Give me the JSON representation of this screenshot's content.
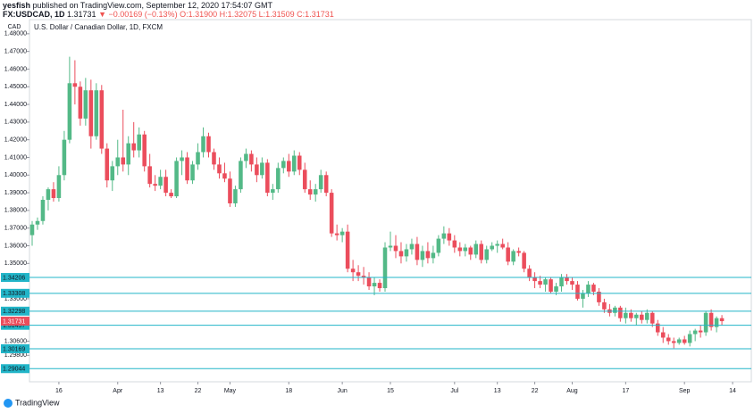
{
  "header": {
    "author": "yesfish",
    "published": "published on TradingView.com, September 12, 2020 17:54:07 GMT",
    "symbol": "FX:USDCAD, 1D",
    "last": "1.31731",
    "change": "▼ −0.00169 (−0.13%)",
    "ohlc": "O:1.31900 H:1.32075 L:1.31509 C:1.31731"
  },
  "footer": {
    "brand": "TradingView"
  },
  "chart_data": {
    "type": "candlestick",
    "title": "U.S. Dollar / Canadian Dollar, 1D, FXCM",
    "axis_label": "CAD",
    "up_color": "#53b987",
    "down_color": "#eb4d5c",
    "level_color": "#22b5c8",
    "ylim": [
      1.283,
      1.488
    ],
    "xlim": [
      -0.5,
      134.5
    ],
    "yticks": [
      {
        "value": 1.48,
        "label": "1.48000"
      },
      {
        "value": 1.47,
        "label": "1.47000"
      },
      {
        "value": 1.46,
        "label": "1.46000"
      },
      {
        "value": 1.45,
        "label": "1.45000"
      },
      {
        "value": 1.44,
        "label": "1.44000"
      },
      {
        "value": 1.43,
        "label": "1.43000"
      },
      {
        "value": 1.42,
        "label": "1.42000"
      },
      {
        "value": 1.41,
        "label": "1.41000"
      },
      {
        "value": 1.4,
        "label": "1.40000"
      },
      {
        "value": 1.39,
        "label": "1.39000"
      },
      {
        "value": 1.38,
        "label": "1.38000"
      },
      {
        "value": 1.37,
        "label": "1.37000"
      },
      {
        "value": 1.36,
        "label": "1.36000"
      },
      {
        "value": 1.35,
        "label": "1.35000"
      },
      {
        "value": 1.33,
        "label": "1.33000"
      },
      {
        "value": 1.306,
        "label": "1.30600"
      },
      {
        "value": 1.298,
        "label": "1.29800"
      }
    ],
    "xticks": [
      {
        "value": 5,
        "label": "16"
      },
      {
        "value": 16,
        "label": "Apr"
      },
      {
        "value": 24,
        "label": "13"
      },
      {
        "value": 31,
        "label": "22"
      },
      {
        "value": 37,
        "label": "May"
      },
      {
        "value": 48,
        "label": "18"
      },
      {
        "value": 58,
        "label": "Jun"
      },
      {
        "value": 67,
        "label": "15"
      },
      {
        "value": 79,
        "label": "Jul"
      },
      {
        "value": 87,
        "label": "13"
      },
      {
        "value": 94,
        "label": "22"
      },
      {
        "value": 101,
        "label": "Aug"
      },
      {
        "value": 111,
        "label": "17"
      },
      {
        "value": 122,
        "label": "Sep"
      },
      {
        "value": 131,
        "label": "14"
      }
    ],
    "levels": [
      1.34206,
      1.33308,
      1.32298,
      1.31497,
      1.30169,
      1.29044
    ],
    "last_price": 1.31731,
    "candles": [
      [
        1.366,
        1.374,
        1.36,
        1.372
      ],
      [
        1.372,
        1.376,
        1.369,
        1.374
      ],
      [
        1.374,
        1.388,
        1.372,
        1.386
      ],
      [
        1.386,
        1.393,
        1.38,
        1.392
      ],
      [
        1.392,
        1.396,
        1.385,
        1.387
      ],
      [
        1.387,
        1.405,
        1.385,
        1.4
      ],
      [
        1.4,
        1.425,
        1.397,
        1.42
      ],
      [
        1.42,
        1.467,
        1.418,
        1.452
      ],
      [
        1.452,
        1.465,
        1.44,
        1.45
      ],
      [
        1.45,
        1.453,
        1.428,
        1.432
      ],
      [
        1.432,
        1.455,
        1.428,
        1.448
      ],
      [
        1.448,
        1.454,
        1.415,
        1.422
      ],
      [
        1.422,
        1.452,
        1.42,
        1.448
      ],
      [
        1.448,
        1.451,
        1.412,
        1.415
      ],
      [
        1.415,
        1.418,
        1.393,
        1.397
      ],
      [
        1.397,
        1.408,
        1.391,
        1.405
      ],
      [
        1.405,
        1.42,
        1.4,
        1.41
      ],
      [
        1.41,
        1.437,
        1.402,
        1.406
      ],
      [
        1.406,
        1.422,
        1.4,
        1.418
      ],
      [
        1.418,
        1.43,
        1.41,
        1.414
      ],
      [
        1.414,
        1.427,
        1.41,
        1.423
      ],
      [
        1.423,
        1.425,
        1.402,
        1.405
      ],
      [
        1.405,
        1.412,
        1.393,
        1.395
      ],
      [
        1.395,
        1.4,
        1.391,
        1.394
      ],
      [
        1.394,
        1.403,
        1.392,
        1.399
      ],
      [
        1.399,
        1.403,
        1.388,
        1.39
      ],
      [
        1.39,
        1.392,
        1.387,
        1.388
      ],
      [
        1.388,
        1.41,
        1.387,
        1.408
      ],
      [
        1.408,
        1.414,
        1.4,
        1.41
      ],
      [
        1.41,
        1.413,
        1.395,
        1.397
      ],
      [
        1.397,
        1.408,
        1.395,
        1.406
      ],
      [
        1.406,
        1.418,
        1.403,
        1.413
      ],
      [
        1.413,
        1.427,
        1.41,
        1.422
      ],
      [
        1.422,
        1.424,
        1.41,
        1.413
      ],
      [
        1.413,
        1.415,
        1.403,
        1.406
      ],
      [
        1.406,
        1.41,
        1.398,
        1.401
      ],
      [
        1.401,
        1.407,
        1.396,
        1.398
      ],
      [
        1.398,
        1.402,
        1.382,
        1.384
      ],
      [
        1.384,
        1.394,
        1.382,
        1.392
      ],
      [
        1.392,
        1.41,
        1.39,
        1.408
      ],
      [
        1.408,
        1.415,
        1.404,
        1.412
      ],
      [
        1.412,
        1.414,
        1.402,
        1.406
      ],
      [
        1.406,
        1.41,
        1.396,
        1.4
      ],
      [
        1.4,
        1.41,
        1.398,
        1.407
      ],
      [
        1.407,
        1.409,
        1.388,
        1.39
      ],
      [
        1.39,
        1.395,
        1.386,
        1.392
      ],
      [
        1.392,
        1.407,
        1.39,
        1.404
      ],
      [
        1.404,
        1.41,
        1.401,
        1.408
      ],
      [
        1.408,
        1.412,
        1.399,
        1.402
      ],
      [
        1.402,
        1.414,
        1.4,
        1.411
      ],
      [
        1.411,
        1.413,
        1.4,
        1.403
      ],
      [
        1.403,
        1.407,
        1.39,
        1.392
      ],
      [
        1.392,
        1.397,
        1.386,
        1.389
      ],
      [
        1.389,
        1.395,
        1.385,
        1.392
      ],
      [
        1.392,
        1.403,
        1.39,
        1.4
      ],
      [
        1.4,
        1.402,
        1.388,
        1.39
      ],
      [
        1.39,
        1.392,
        1.365,
        1.367
      ],
      [
        1.367,
        1.372,
        1.363,
        1.366
      ],
      [
        1.366,
        1.37,
        1.362,
        1.368
      ],
      [
        1.368,
        1.372,
        1.345,
        1.347
      ],
      [
        1.347,
        1.352,
        1.34,
        1.345
      ],
      [
        1.345,
        1.349,
        1.34,
        1.343
      ],
      [
        1.343,
        1.348,
        1.338,
        1.342
      ],
      [
        1.342,
        1.345,
        1.335,
        1.337
      ],
      [
        1.337,
        1.342,
        1.332,
        1.339
      ],
      [
        1.339,
        1.341,
        1.334,
        1.336
      ],
      [
        1.336,
        1.362,
        1.334,
        1.359
      ],
      [
        1.359,
        1.368,
        1.357,
        1.36
      ],
      [
        1.36,
        1.366,
        1.353,
        1.357
      ],
      [
        1.357,
        1.362,
        1.35,
        1.354
      ],
      [
        1.354,
        1.361,
        1.351,
        1.358
      ],
      [
        1.358,
        1.364,
        1.355,
        1.361
      ],
      [
        1.361,
        1.365,
        1.349,
        1.352
      ],
      [
        1.352,
        1.36,
        1.348,
        1.357
      ],
      [
        1.357,
        1.362,
        1.35,
        1.353
      ],
      [
        1.353,
        1.36,
        1.35,
        1.356
      ],
      [
        1.356,
        1.366,
        1.354,
        1.364
      ],
      [
        1.364,
        1.371,
        1.361,
        1.367
      ],
      [
        1.367,
        1.37,
        1.36,
        1.363
      ],
      [
        1.363,
        1.366,
        1.356,
        1.359
      ],
      [
        1.359,
        1.362,
        1.354,
        1.357
      ],
      [
        1.357,
        1.361,
        1.354,
        1.359
      ],
      [
        1.359,
        1.36,
        1.352,
        1.355
      ],
      [
        1.355,
        1.363,
        1.353,
        1.361
      ],
      [
        1.361,
        1.363,
        1.35,
        1.352
      ],
      [
        1.352,
        1.36,
        1.35,
        1.358
      ],
      [
        1.358,
        1.362,
        1.357,
        1.36
      ],
      [
        1.36,
        1.363,
        1.356,
        1.361
      ],
      [
        1.361,
        1.364,
        1.358,
        1.359
      ],
      [
        1.359,
        1.362,
        1.349,
        1.351
      ],
      [
        1.351,
        1.358,
        1.349,
        1.357
      ],
      [
        1.357,
        1.359,
        1.354,
        1.356
      ],
      [
        1.356,
        1.357,
        1.345,
        1.347
      ],
      [
        1.347,
        1.349,
        1.34,
        1.342
      ],
      [
        1.342,
        1.345,
        1.336,
        1.34
      ],
      [
        1.34,
        1.343,
        1.336,
        1.338
      ],
      [
        1.338,
        1.342,
        1.334,
        1.341
      ],
      [
        1.341,
        1.342,
        1.333,
        1.334
      ],
      [
        1.334,
        1.339,
        1.332,
        1.337
      ],
      [
        1.337,
        1.344,
        1.334,
        1.342
      ],
      [
        1.342,
        1.344,
        1.338,
        1.34
      ],
      [
        1.34,
        1.342,
        1.335,
        1.338
      ],
      [
        1.338,
        1.34,
        1.329,
        1.33
      ],
      [
        1.33,
        1.335,
        1.325,
        1.333
      ],
      [
        1.333,
        1.34,
        1.331,
        1.338
      ],
      [
        1.338,
        1.339,
        1.332,
        1.334
      ],
      [
        1.334,
        1.336,
        1.326,
        1.328
      ],
      [
        1.328,
        1.33,
        1.322,
        1.324
      ],
      [
        1.324,
        1.327,
        1.32,
        1.322
      ],
      [
        1.322,
        1.326,
        1.32,
        1.325
      ],
      [
        1.325,
        1.326,
        1.317,
        1.319
      ],
      [
        1.319,
        1.325,
        1.316,
        1.322
      ],
      [
        1.322,
        1.324,
        1.317,
        1.319
      ],
      [
        1.319,
        1.322,
        1.315,
        1.321
      ],
      [
        1.321,
        1.323,
        1.316,
        1.318
      ],
      [
        1.318,
        1.324,
        1.316,
        1.322
      ],
      [
        1.322,
        1.323,
        1.314,
        1.316
      ],
      [
        1.316,
        1.318,
        1.309,
        1.311
      ],
      [
        1.311,
        1.314,
        1.305,
        1.308
      ],
      [
        1.308,
        1.31,
        1.304,
        1.306
      ],
      [
        1.306,
        1.308,
        1.302,
        1.305
      ],
      [
        1.305,
        1.308,
        1.304,
        1.307
      ],
      [
        1.307,
        1.309,
        1.304,
        1.305
      ],
      [
        1.305,
        1.312,
        1.303,
        1.31
      ],
      [
        1.31,
        1.313,
        1.306,
        1.312
      ],
      [
        1.312,
        1.315,
        1.308,
        1.311
      ],
      [
        1.311,
        1.323,
        1.309,
        1.322
      ],
      [
        1.322,
        1.324,
        1.312,
        1.314
      ],
      [
        1.314,
        1.32,
        1.311,
        1.319
      ],
      [
        1.319,
        1.32075,
        1.31509,
        1.31731
      ]
    ]
  }
}
